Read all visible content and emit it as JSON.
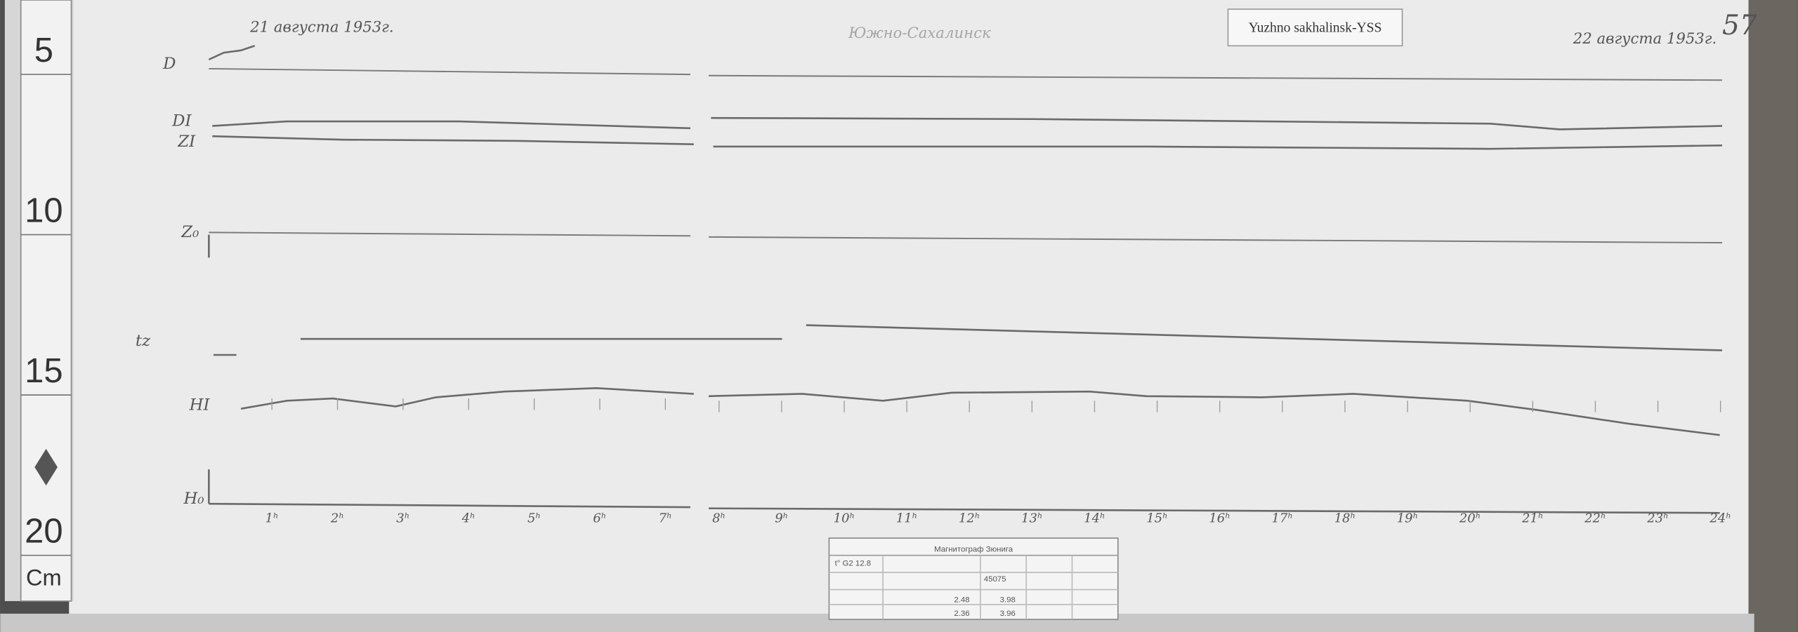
{
  "ruler": {
    "labels": [
      "5",
      "10",
      "15",
      "20"
    ],
    "unit": "Cm"
  },
  "header": {
    "date_left": "21 августа 1953г.",
    "station": "Южно-Сахалинск",
    "tag": "Yuzhno sakhalinsk-YSS",
    "date_right": "22 августа 1953г.",
    "sheet": "57"
  },
  "traces": [
    "D",
    "DI",
    "ZI",
    "Z₀",
    "tz",
    "HI",
    "H₀"
  ],
  "hours": [
    "1ʰ",
    "2ʰ",
    "3ʰ",
    "4ʰ",
    "5ʰ",
    "6ʰ",
    "7ʰ",
    "8ʰ",
    "9ʰ",
    "10ʰ",
    "11ʰ",
    "12ʰ",
    "13ʰ",
    "14ʰ",
    "15ʰ",
    "16ʰ",
    "17ʰ",
    "18ʰ",
    "19ʰ",
    "20ʰ",
    "21ʰ",
    "22ʰ",
    "23ʰ",
    "24ʰ"
  ],
  "table": {
    "title": "Магнитограф Зюнига",
    "rows": [
      [
        "t° G2 12.8"
      ],
      [
        "45075"
      ],
      [
        "2.48",
        "3.98"
      ],
      [
        "2.36",
        "3.96"
      ]
    ]
  }
}
